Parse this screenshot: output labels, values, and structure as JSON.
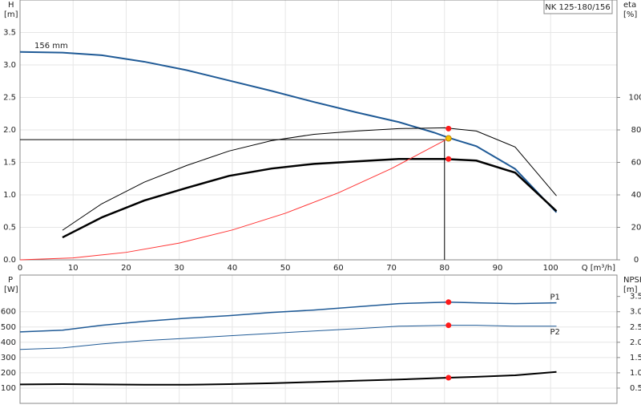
{
  "chart_data": [
    {
      "type": "line",
      "title": "NK 125-180/156",
      "y_label": "H",
      "y_unit": "[m]",
      "y2_label": "eta",
      "y2_unit": "[%]",
      "x_label": "Q [m³/h]",
      "xlim": [
        0,
        112.5
      ],
      "xticks": [
        0,
        10,
        20,
        30,
        40,
        50,
        60,
        70,
        80,
        90,
        100
      ],
      "ylim": [
        0,
        4
      ],
      "yticks": [
        {
          "value": 0,
          "label": "0.0"
        },
        0.5,
        {
          "value": 1,
          "label": "1.0"
        },
        1.5,
        {
          "value": 2,
          "label": "2.0"
        },
        2.5,
        {
          "value": 3,
          "label": "3.0"
        },
        3.5
      ],
      "y2lim": [
        0,
        160
      ],
      "y2ticks": [
        0,
        20,
        40,
        60,
        80,
        100
      ],
      "grid": true,
      "series": [
        {
          "name": "156 mm",
          "label_at": "start",
          "color": "#1f5a96",
          "width": 2,
          "x": [
            0,
            8,
            15.4,
            23.4,
            31.4,
            39.4,
            47.4,
            55.4,
            63.4,
            71.4,
            78,
            80.75,
            86,
            93.3,
            101.1
          ],
          "values": [
            3.2,
            3.19,
            3.15,
            3.05,
            2.92,
            2.76,
            2.6,
            2.43,
            2.27,
            2.12,
            1.96,
            1.88,
            1.75,
            1.4,
            0.73
          ]
        },
        {
          "color": "#000000",
          "width": 1,
          "axis": "y2",
          "x": [
            8,
            15.4,
            23.4,
            31.4,
            39.4,
            47.4,
            55.4,
            63.4,
            71.4,
            80,
            86,
            93.3,
            101.1
          ],
          "values": [
            18.2,
            34.5,
            47.8,
            58.1,
            67.0,
            73.4,
            77.3,
            79.3,
            80.8,
            81.3,
            79.3,
            69.5,
            39.4
          ]
        },
        {
          "color": "#000000",
          "width": 2.5,
          "axis": "y2",
          "x": [
            8,
            15.4,
            23.4,
            31.4,
            39.4,
            47.4,
            55.4,
            63.4,
            71.4,
            80,
            86,
            93.3,
            101.1
          ],
          "values": [
            13.8,
            26.1,
            36.5,
            44.3,
            51.7,
            56.2,
            59.1,
            60.6,
            62.1,
            62.1,
            61.1,
            53.7,
            30.0
          ]
        },
        {
          "color": "#ff3333",
          "width": 1,
          "x": [
            0,
            10,
            20,
            30,
            40,
            50,
            60,
            70,
            80.75
          ],
          "values": [
            0,
            0.029,
            0.115,
            0.258,
            0.459,
            0.717,
            1.032,
            1.405,
            1.87
          ]
        }
      ],
      "duty_lines": {
        "x": 80,
        "y": 1.85
      },
      "markers": [
        {
          "x": 80.75,
          "y": 80.8,
          "axis": "y2",
          "color": "#ff1a1a"
        },
        {
          "x": 80.75,
          "y": 62.1,
          "axis": "y2",
          "color": "#ff1a1a"
        },
        {
          "x": 80.75,
          "y": 1.87,
          "color": "#f5c400"
        }
      ]
    },
    {
      "type": "line",
      "y_label": "P",
      "y_unit": "[W]",
      "y2_label": "NPSH",
      "y2_unit": "[m]",
      "xlim": [
        0,
        112.5
      ],
      "ylim": [
        0,
        840
      ],
      "yticks": [
        100,
        200,
        300,
        400,
        500,
        600
      ],
      "y2lim": [
        0,
        4.2
      ],
      "y2ticks": [
        0.5,
        {
          "value": 1,
          "label": "1.0"
        },
        1.5,
        {
          "value": 2,
          "label": "2.0"
        },
        2.5,
        {
          "value": 3,
          "label": "3.0"
        },
        3.5
      ],
      "grid": true,
      "series": [
        {
          "name": "P1",
          "label_at": "end",
          "color": "#1f5a96",
          "width": 1.5,
          "x": [
            0,
            8,
            15.4,
            23.4,
            31.4,
            39.4,
            47.4,
            55.4,
            63.4,
            71.4,
            80.75,
            86,
            93.3,
            101.1
          ],
          "values": [
            468,
            479,
            511,
            537,
            558,
            574,
            595,
            611,
            632,
            653,
            663,
            658,
            653,
            658
          ]
        },
        {
          "name": "P2",
          "label_at": "end",
          "color": "#1f5a96",
          "width": 1,
          "x": [
            0,
            8,
            15.4,
            23.4,
            31.4,
            39.4,
            47.4,
            55.4,
            63.4,
            71.4,
            80.75,
            86,
            93.3,
            101.1
          ],
          "values": [
            353,
            363,
            389,
            411,
            426,
            442,
            458,
            474,
            489,
            505,
            511,
            511,
            505,
            505
          ]
        },
        {
          "color": "#000000",
          "width": 2,
          "axis": "y2",
          "x": [
            0,
            8,
            15.4,
            23.4,
            31.4,
            39.4,
            47.4,
            55.4,
            63.4,
            71.4,
            80.75,
            86,
            93.3,
            101.1
          ],
          "values": [
            0.62,
            0.63,
            0.62,
            0.61,
            0.61,
            0.63,
            0.66,
            0.7,
            0.74,
            0.78,
            0.84,
            0.87,
            0.92,
            1.03
          ]
        }
      ],
      "markers": [
        {
          "x": 80.75,
          "y": 663,
          "color": "#ff1a1a"
        },
        {
          "x": 80.75,
          "y": 511,
          "color": "#ff1a1a"
        },
        {
          "x": 80.75,
          "y": 0.84,
          "axis": "y2",
          "color": "#ff1a1a"
        }
      ]
    }
  ]
}
